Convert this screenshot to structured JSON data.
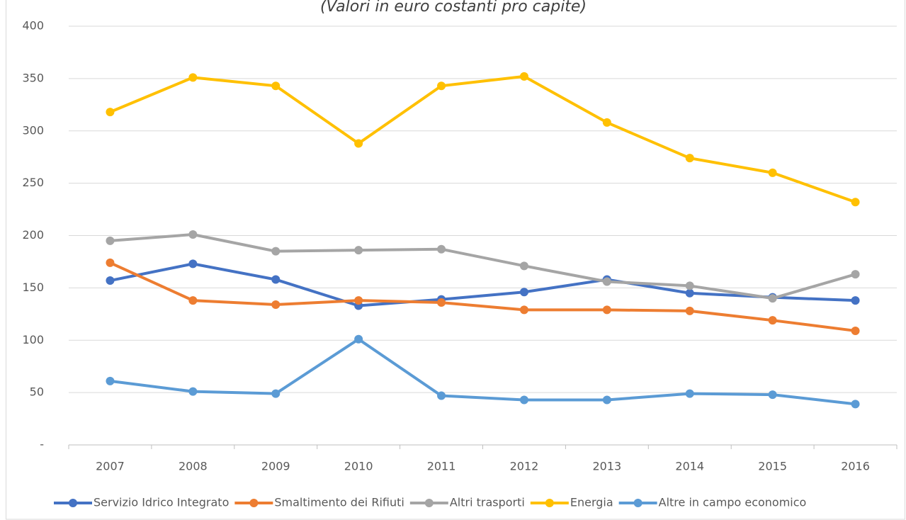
{
  "chart_data": {
    "type": "line",
    "title": "(Valori in euro costanti pro capite)",
    "categories": [
      "2007",
      "2008",
      "2009",
      "2010",
      "2011",
      "2012",
      "2013",
      "2014",
      "2015",
      "2016"
    ],
    "series": [
      {
        "name": "Servizio Idrico Integrato",
        "color": "#4472c4",
        "values": [
          157,
          173,
          158,
          133,
          139,
          146,
          158,
          145,
          141,
          138
        ]
      },
      {
        "name": "Smaltimento dei Rifiuti",
        "color": "#ed7d31",
        "values": [
          174,
          138,
          134,
          138,
          136,
          129,
          129,
          128,
          119,
          109
        ]
      },
      {
        "name": "Altri trasporti",
        "color": "#a5a5a5",
        "values": [
          195,
          201,
          185,
          186,
          187,
          171,
          156,
          152,
          140,
          163
        ]
      },
      {
        "name": "Energia",
        "color": "#ffc000",
        "values": [
          318,
          351,
          343,
          288,
          343,
          352,
          308,
          274,
          260,
          232
        ]
      },
      {
        "name": "Altre in campo economico",
        "color": "#5b9bd5",
        "values": [
          61,
          51,
          49,
          101,
          47,
          43,
          43,
          49,
          48,
          39
        ]
      }
    ],
    "ylim": [
      0,
      400
    ],
    "yticks": [
      {
        "value": 0,
        "label": "-"
      },
      50,
      100,
      150,
      200,
      250,
      300,
      350,
      400
    ],
    "grid": true,
    "legend": "bottom"
  }
}
